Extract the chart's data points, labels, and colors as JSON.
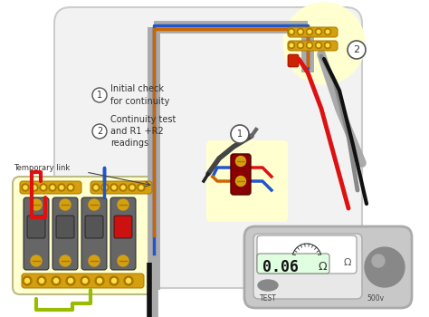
{
  "bg_color": "#ffffff",
  "annotation1": "Initial check\nfor continuity",
  "annotation2": "Continuity test\nand R1 +R2\nreadings",
  "temp_link_label": "Temporary link",
  "test_label": "TEST",
  "volt_label": "500v",
  "ohm_display": "0.06",
  "ohm_symbol": "Ω",
  "yellow_bg": "#ffffd0",
  "panel_bg": "#cccccc",
  "wire_gray": "#aaaaaa",
  "wire_gray2": "#888888",
  "wire_red": "#dd1111",
  "wire_blue": "#2255cc",
  "wire_green_yellow": "#99bb00",
  "wire_black": "#111111",
  "wire_brown": "#7a4010",
  "terminal_gold": "#d4a010",
  "terminal_dark": "#aa7700",
  "breaker_gray": "#555555",
  "breaker_red": "#cc1111",
  "socket_red": "#880000",
  "probe_gray": "#888888",
  "meter_body": "#c8c8c8",
  "meter_screen_bg": "#e8e8e8",
  "meter_display_bg": "#e0ffe0",
  "knob_color": "#888888",
  "knob_shine": "#aaaaaa",
  "test_btn_color": "#999999",
  "circle_label_bg": "#ffffff",
  "main_box_bg": "#f2f2f2",
  "main_box_edge": "#cccccc"
}
